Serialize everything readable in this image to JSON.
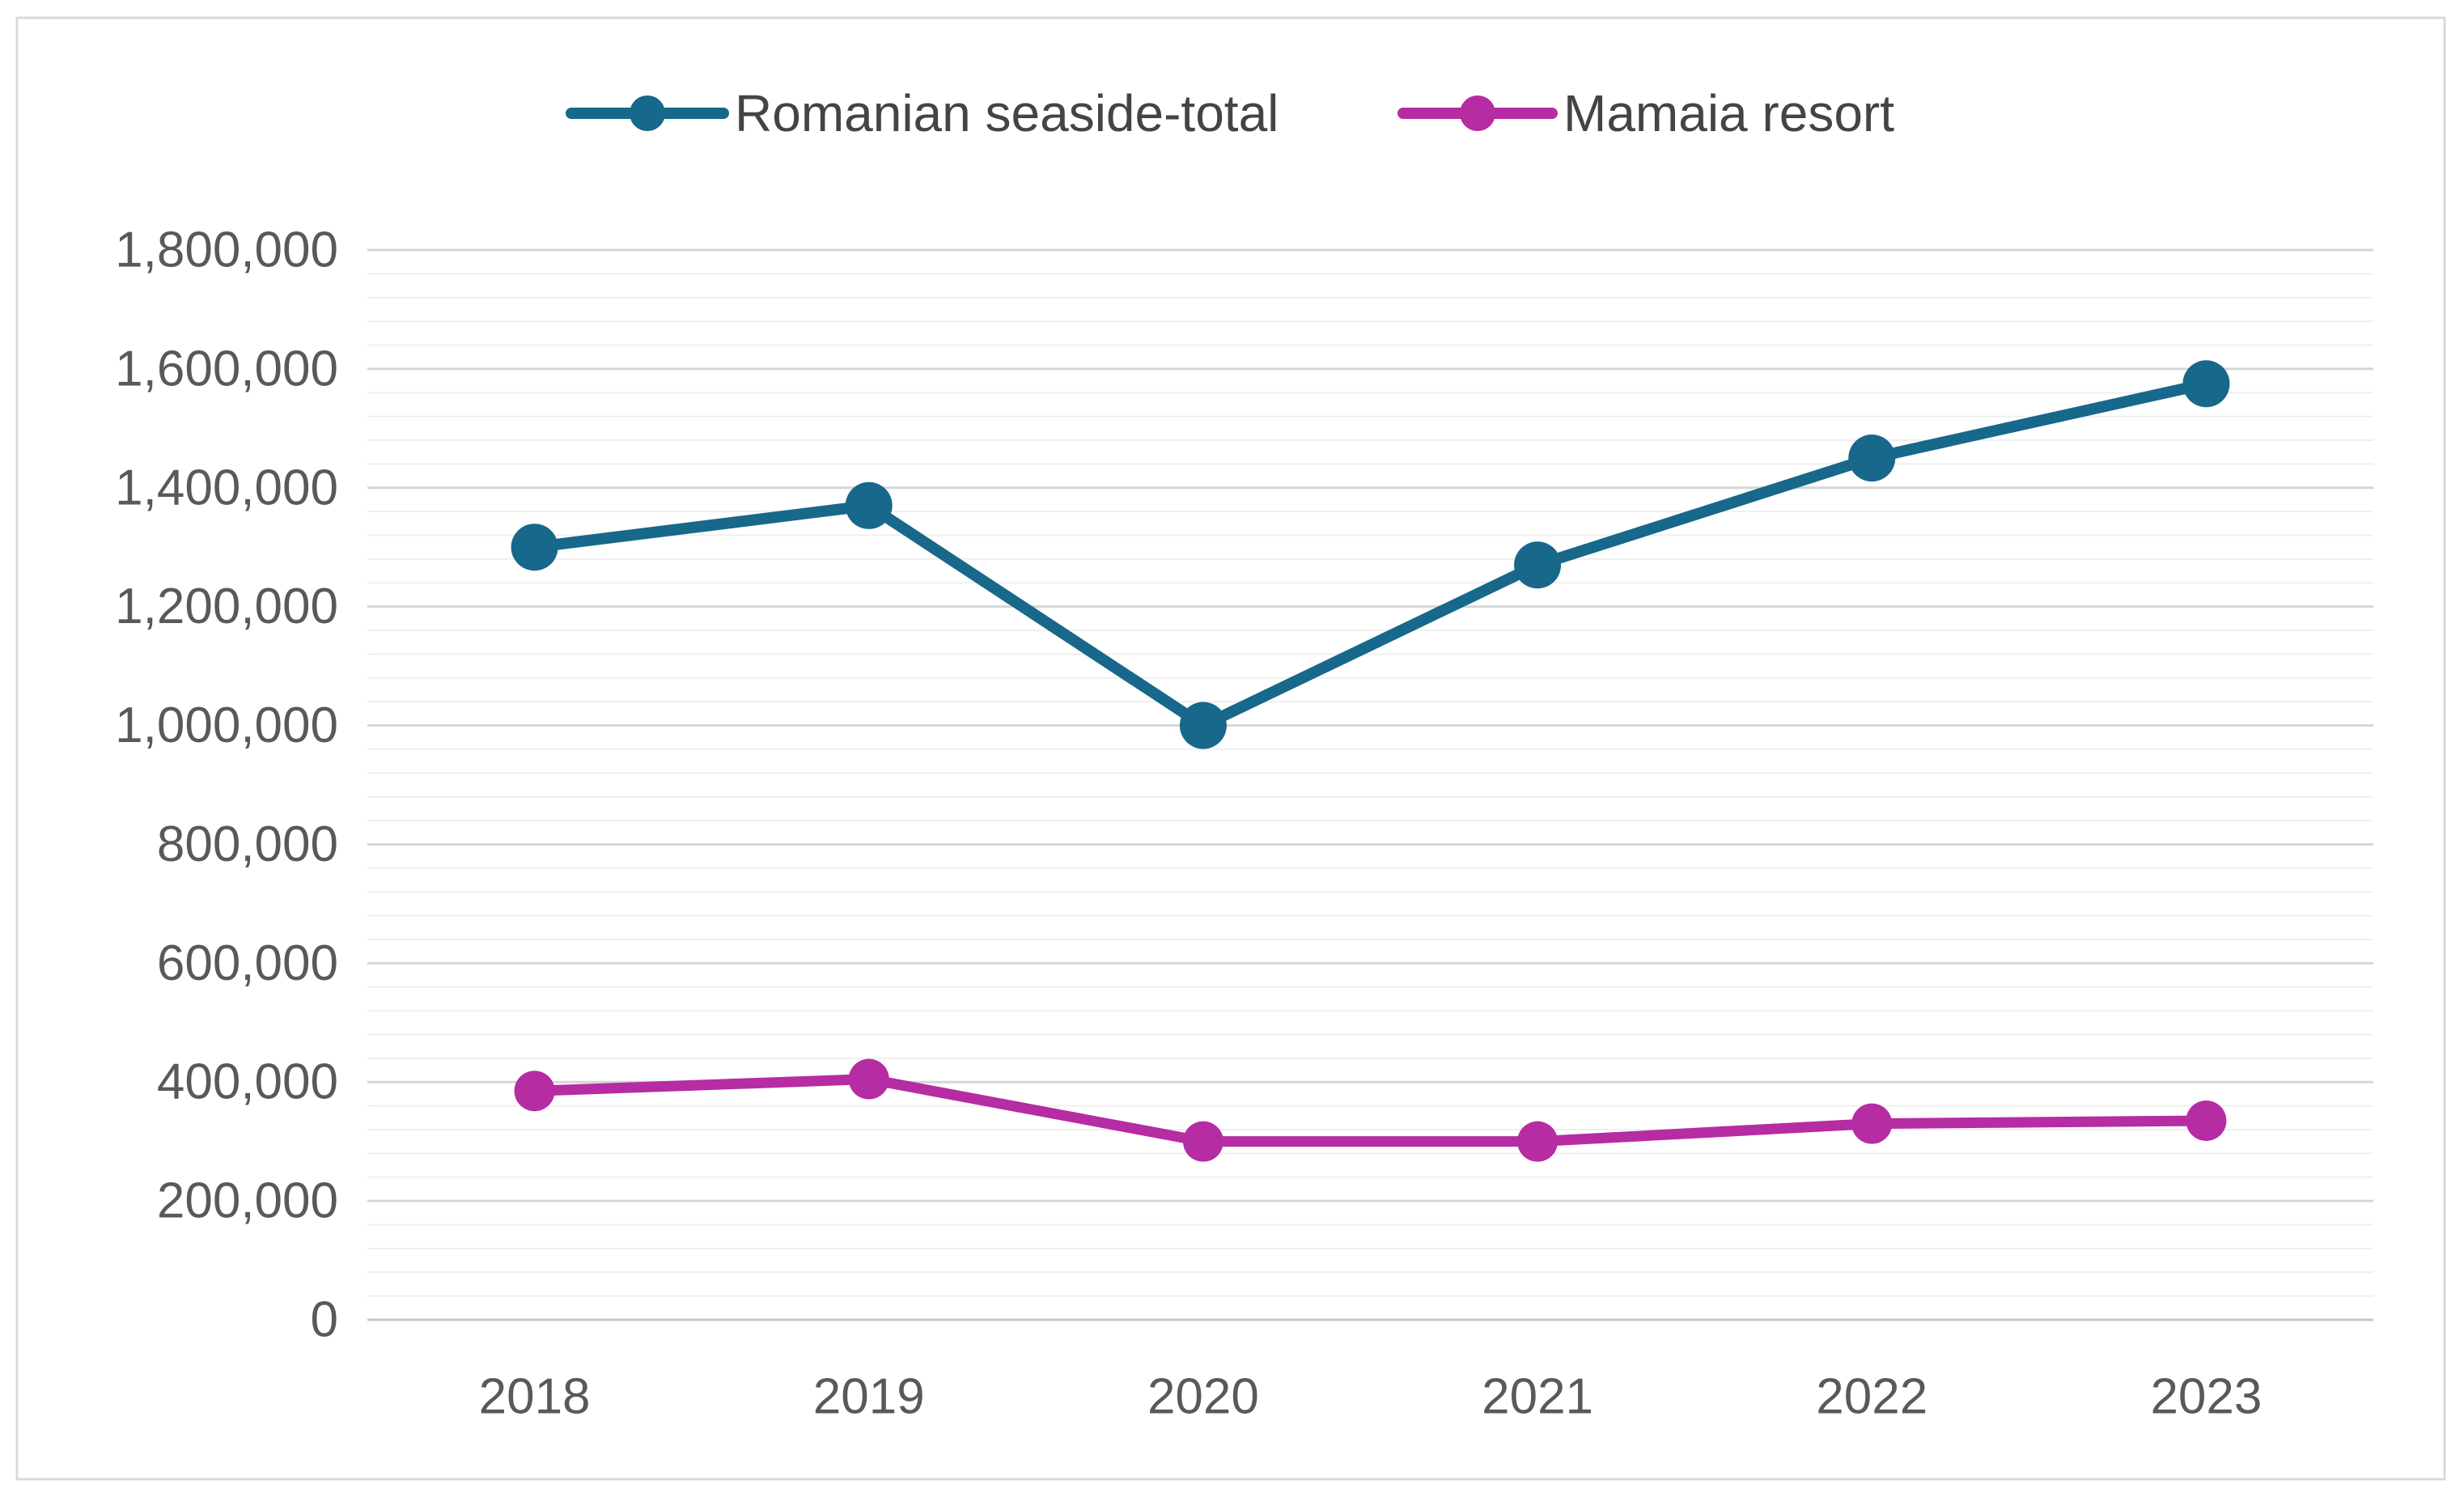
{
  "figure": {
    "background_color": "#FFFFFF",
    "border_color": "#D9D9D9",
    "axis_label_color": "#595959",
    "legend_text_color": "#444444",
    "gridline_major_color": "#D6D6D6",
    "gridline_minor_color": "#EFEFEF",
    "zero_line_color": "#C8C8C8"
  },
  "legend": {
    "items": [
      {
        "label": "Romanian seaside-total",
        "color": "#17688A"
      },
      {
        "label": "Mamaia resort",
        "color": "#B62CA3"
      }
    ]
  },
  "chart_data": {
    "type": "line",
    "title": "",
    "xlabel": "",
    "ylabel": "",
    "categories": [
      "2018",
      "2019",
      "2020",
      "2021",
      "2022",
      "2023"
    ],
    "series": [
      {
        "name": "Romanian seaside-total",
        "color": "#17688A",
        "line_width": 14,
        "marker": "circle",
        "marker_radius": 29,
        "values": [
          1300000,
          1370000,
          1000000,
          1270000,
          1450000,
          1575000
        ]
      },
      {
        "name": "Mamaia resort",
        "color": "#B62CA3",
        "line_width": 13,
        "marker": "circle",
        "marker_radius": 25,
        "values": [
          385000,
          405000,
          300000,
          300000,
          330000,
          335000
        ]
      }
    ],
    "ylim": [
      0,
      1800000
    ],
    "y_major_step": 200000,
    "y_minor_step": 40000,
    "y_tick_labels": [
      "0",
      "200,000",
      "400,000",
      "600,000",
      "800,000",
      "1,000,000",
      "1,200,000",
      "1,400,000",
      "1,600,000",
      "1,800,000"
    ],
    "grid": "horizontal major + minor",
    "legend_position": "top-center"
  }
}
